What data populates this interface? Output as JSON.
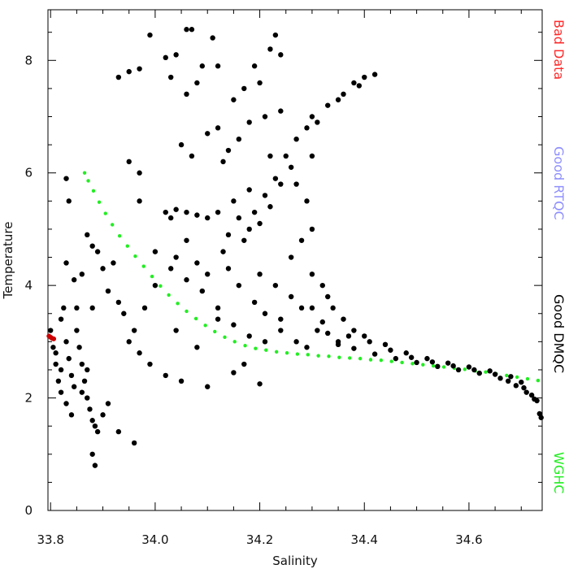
{
  "chart_data": {
    "type": "scatter",
    "xlabel": "Salinity",
    "ylabel": "Temperature",
    "xlim": [
      33.795,
      34.74
    ],
    "ylim": [
      0,
      8.9
    ],
    "x_ticks": [
      "33.8",
      "34.0",
      "34.2",
      "34.4",
      "34.6"
    ],
    "y_ticks": [
      "0",
      "2",
      "4",
      "6",
      "8"
    ],
    "legend_position": "right, vertical",
    "legend": [
      {
        "label": "Bad Data",
        "color": "#ff2a2a"
      },
      {
        "label": "Good RTQC",
        "color": "#8f8fff"
      },
      {
        "label": "Good DMQC",
        "color": "#000000"
      },
      {
        "label": "WGHC",
        "color": "#22ee22"
      }
    ],
    "series": [
      {
        "name": "Bad Data",
        "color": "#cc0000",
        "points": [
          [
            33.797,
            3.1
          ],
          [
            33.8,
            3.08
          ],
          [
            33.803,
            3.06
          ],
          [
            33.806,
            3.05
          ]
        ]
      },
      {
        "name": "WGHC",
        "color": "#22ee22",
        "points": [
          [
            33.865,
            6.0
          ],
          [
            33.872,
            5.86
          ],
          [
            33.882,
            5.68
          ],
          [
            33.893,
            5.48
          ],
          [
            33.905,
            5.28
          ],
          [
            33.918,
            5.08
          ],
          [
            33.932,
            4.88
          ],
          [
            33.947,
            4.7
          ],
          [
            33.962,
            4.52
          ],
          [
            33.978,
            4.34
          ],
          [
            33.994,
            4.16
          ],
          [
            34.01,
            3.99
          ],
          [
            34.026,
            3.83
          ],
          [
            34.043,
            3.68
          ],
          [
            34.06,
            3.54
          ],
          [
            34.078,
            3.41
          ],
          [
            34.096,
            3.29
          ],
          [
            34.114,
            3.18
          ],
          [
            34.133,
            3.08
          ],
          [
            34.152,
            3.0
          ],
          [
            34.172,
            2.93
          ],
          [
            34.192,
            2.88
          ],
          [
            34.212,
            2.85
          ],
          [
            34.232,
            2.82
          ],
          [
            34.252,
            2.8
          ],
          [
            34.272,
            2.78
          ],
          [
            34.292,
            2.77
          ],
          [
            34.312,
            2.75
          ],
          [
            34.332,
            2.74
          ],
          [
            34.352,
            2.72
          ],
          [
            34.372,
            2.71
          ],
          [
            34.392,
            2.7
          ],
          [
            34.412,
            2.68
          ],
          [
            34.432,
            2.67
          ],
          [
            34.452,
            2.65
          ],
          [
            34.472,
            2.63
          ],
          [
            34.492,
            2.61
          ],
          [
            34.512,
            2.59
          ],
          [
            34.532,
            2.57
          ],
          [
            34.552,
            2.55
          ],
          [
            34.572,
            2.53
          ],
          [
            34.592,
            2.51
          ],
          [
            34.612,
            2.48
          ],
          [
            34.632,
            2.46
          ],
          [
            34.652,
            2.43
          ],
          [
            34.672,
            2.4
          ],
          [
            34.692,
            2.37
          ],
          [
            34.712,
            2.34
          ],
          [
            34.732,
            2.31
          ]
        ]
      },
      {
        "name": "Good DMQC",
        "color": "#000000",
        "points": [
          [
            34.35,
            2.95
          ],
          [
            34.38,
            2.88
          ],
          [
            34.42,
            2.78
          ],
          [
            34.46,
            2.7
          ],
          [
            34.5,
            2.63
          ],
          [
            34.54,
            2.56
          ],
          [
            34.58,
            2.5
          ],
          [
            34.62,
            2.44
          ],
          [
            34.66,
            2.35
          ],
          [
            34.69,
            2.22
          ],
          [
            34.71,
            2.1
          ],
          [
            34.73,
            1.95
          ],
          [
            34.735,
            1.72
          ],
          [
            34.738,
            1.65
          ],
          [
            34.3,
            3.6
          ],
          [
            34.32,
            3.35
          ],
          [
            34.4,
            3.1
          ],
          [
            34.44,
            2.95
          ],
          [
            34.48,
            2.8
          ],
          [
            34.52,
            2.7
          ],
          [
            34.56,
            2.62
          ],
          [
            34.6,
            2.55
          ],
          [
            34.64,
            2.48
          ],
          [
            34.68,
            2.38
          ],
          [
            34.7,
            2.28
          ],
          [
            34.72,
            2.05
          ],
          [
            34.37,
            3.1
          ],
          [
            34.41,
            3.0
          ],
          [
            34.45,
            2.85
          ],
          [
            34.49,
            2.72
          ],
          [
            34.53,
            2.64
          ],
          [
            34.57,
            2.57
          ],
          [
            34.61,
            2.5
          ],
          [
            34.65,
            2.42
          ],
          [
            34.675,
            2.3
          ],
          [
            34.705,
            2.18
          ],
          [
            34.725,
            1.98
          ],
          [
            34.3,
            7.0
          ],
          [
            34.33,
            7.2
          ],
          [
            34.36,
            7.4
          ],
          [
            34.38,
            7.6
          ],
          [
            34.4,
            7.7
          ],
          [
            34.42,
            7.75
          ],
          [
            34.27,
            6.6
          ],
          [
            34.29,
            6.8
          ],
          [
            34.31,
            6.9
          ],
          [
            34.35,
            7.3
          ],
          [
            34.39,
            7.55
          ],
          [
            34.25,
            6.3
          ],
          [
            34.26,
            6.1
          ],
          [
            34.23,
            5.9
          ],
          [
            34.22,
            6.3
          ],
          [
            34.21,
            5.6
          ],
          [
            34.19,
            5.3
          ],
          [
            34.18,
            5.0
          ],
          [
            34.17,
            4.8
          ],
          [
            34.16,
            5.2
          ],
          [
            34.15,
            5.5
          ],
          [
            34.2,
            5.1
          ],
          [
            34.22,
            5.4
          ],
          [
            34.24,
            5.8
          ],
          [
            34.18,
            5.7
          ],
          [
            34.14,
            4.9
          ],
          [
            34.13,
            4.6
          ],
          [
            34.12,
            5.3
          ],
          [
            34.1,
            5.2
          ],
          [
            34.08,
            5.25
          ],
          [
            34.06,
            5.3
          ],
          [
            34.04,
            5.35
          ],
          [
            34.02,
            5.3
          ],
          [
            34.03,
            5.2
          ],
          [
            34.2,
            4.2
          ],
          [
            34.23,
            4.0
          ],
          [
            34.26,
            3.8
          ],
          [
            34.28,
            3.6
          ],
          [
            34.31,
            3.2
          ],
          [
            34.33,
            3.15
          ],
          [
            34.35,
            3.0
          ],
          [
            34.24,
            3.4
          ],
          [
            34.21,
            3.0
          ],
          [
            34.18,
            3.1
          ],
          [
            34.15,
            3.3
          ],
          [
            34.12,
            3.6
          ],
          [
            34.09,
            3.9
          ],
          [
            34.06,
            4.1
          ],
          [
            34.03,
            4.3
          ],
          [
            34.0,
            4.0
          ],
          [
            33.98,
            3.6
          ],
          [
            33.96,
            3.2
          ],
          [
            33.94,
            3.5
          ],
          [
            33.93,
            3.7
          ],
          [
            33.91,
            3.9
          ],
          [
            33.95,
            3.0
          ],
          [
            33.97,
            2.8
          ],
          [
            33.99,
            2.6
          ],
          [
            34.02,
            2.4
          ],
          [
            34.05,
            2.3
          ],
          [
            34.1,
            2.2
          ],
          [
            34.15,
            2.45
          ],
          [
            34.2,
            2.25
          ],
          [
            34.17,
            2.6
          ],
          [
            34.08,
            2.9
          ],
          [
            34.04,
            3.2
          ],
          [
            34.12,
            3.4
          ],
          [
            33.8,
            3.2
          ],
          [
            33.805,
            2.9
          ],
          [
            33.81,
            2.6
          ],
          [
            33.815,
            2.3
          ],
          [
            33.82,
            2.1
          ],
          [
            33.82,
            3.4
          ],
          [
            33.825,
            3.6
          ],
          [
            33.83,
            3.0
          ],
          [
            33.835,
            2.7
          ],
          [
            33.84,
            2.4
          ],
          [
            33.845,
            2.2
          ],
          [
            33.85,
            3.2
          ],
          [
            33.855,
            2.9
          ],
          [
            33.86,
            2.6
          ],
          [
            33.865,
            2.3
          ],
          [
            33.87,
            2.0
          ],
          [
            33.875,
            1.8
          ],
          [
            33.88,
            1.6
          ],
          [
            33.885,
            1.5
          ],
          [
            33.89,
            1.4
          ],
          [
            33.83,
            1.9
          ],
          [
            33.84,
            1.7
          ],
          [
            33.86,
            2.1
          ],
          [
            33.87,
            2.5
          ],
          [
            33.88,
            1.0
          ],
          [
            33.885,
            0.8
          ],
          [
            33.9,
            1.7
          ],
          [
            33.91,
            1.9
          ],
          [
            33.93,
            1.4
          ],
          [
            33.96,
            1.2
          ],
          [
            33.85,
            3.6
          ],
          [
            33.83,
            4.4
          ],
          [
            33.845,
            4.1
          ],
          [
            33.86,
            4.2
          ],
          [
            33.89,
            4.6
          ],
          [
            33.9,
            4.3
          ],
          [
            33.88,
            3.6
          ],
          [
            33.81,
            2.8
          ],
          [
            33.82,
            2.5
          ],
          [
            33.83,
            5.9
          ],
          [
            33.835,
            5.5
          ],
          [
            33.87,
            4.9
          ],
          [
            33.88,
            4.7
          ],
          [
            33.92,
            4.4
          ],
          [
            33.93,
            7.7
          ],
          [
            33.95,
            7.8
          ],
          [
            33.97,
            7.85
          ],
          [
            33.99,
            8.45
          ],
          [
            34.02,
            8.05
          ],
          [
            34.04,
            8.1
          ],
          [
            34.03,
            7.7
          ],
          [
            34.06,
            8.55
          ],
          [
            34.07,
            8.55
          ],
          [
            34.06,
            7.4
          ],
          [
            34.08,
            7.6
          ],
          [
            34.09,
            7.9
          ],
          [
            34.11,
            8.4
          ],
          [
            34.12,
            7.9
          ],
          [
            34.12,
            6.8
          ],
          [
            34.15,
            7.3
          ],
          [
            34.17,
            7.5
          ],
          [
            34.19,
            7.9
          ],
          [
            34.2,
            7.6
          ],
          [
            34.22,
            8.2
          ],
          [
            34.23,
            8.45
          ],
          [
            34.24,
            8.1
          ],
          [
            34.05,
            6.5
          ],
          [
            34.07,
            6.3
          ],
          [
            34.1,
            6.7
          ],
          [
            33.97,
            6.0
          ],
          [
            33.95,
            6.2
          ],
          [
            33.97,
            5.5
          ],
          [
            34.13,
            6.2
          ],
          [
            34.14,
            6.4
          ],
          [
            34.16,
            6.6
          ],
          [
            34.18,
            6.9
          ],
          [
            34.21,
            7.0
          ],
          [
            34.24,
            7.1
          ],
          [
            34.1,
            4.2
          ],
          [
            34.08,
            4.4
          ],
          [
            34.06,
            4.8
          ],
          [
            34.04,
            4.5
          ],
          [
            34.0,
            4.6
          ],
          [
            34.14,
            4.3
          ],
          [
            34.16,
            4.0
          ],
          [
            34.19,
            3.7
          ],
          [
            34.21,
            3.5
          ],
          [
            34.24,
            3.2
          ],
          [
            34.27,
            3.0
          ],
          [
            34.29,
            2.9
          ],
          [
            34.26,
            4.5
          ],
          [
            34.28,
            4.8
          ],
          [
            34.3,
            5.0
          ],
          [
            34.29,
            5.5
          ],
          [
            34.27,
            5.8
          ],
          [
            34.3,
            6.3
          ],
          [
            34.32,
            4.0
          ],
          [
            34.34,
            3.6
          ],
          [
            34.36,
            3.4
          ],
          [
            34.38,
            3.2
          ],
          [
            34.33,
            3.8
          ],
          [
            34.3,
            4.2
          ]
        ]
      }
    ]
  }
}
